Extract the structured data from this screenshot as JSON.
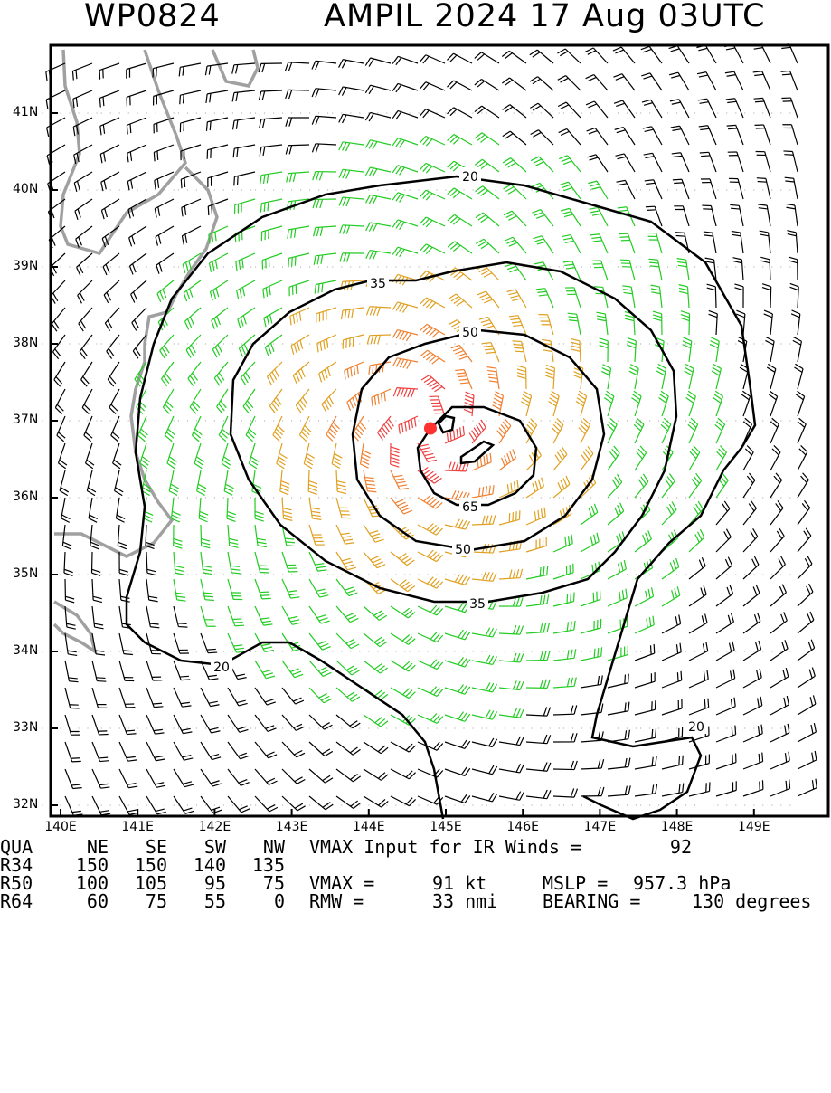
{
  "header": {
    "storm_id": "WP0824",
    "title": "AMPIL 2024 17 Aug 03UTC"
  },
  "axes": {
    "lat_labels": [
      "41N",
      "40N",
      "39N",
      "38N",
      "37N",
      "36N",
      "35N",
      "34N",
      "33N",
      "32N"
    ],
    "lon_labels": [
      "140E",
      "141E",
      "142E",
      "143E",
      "144E",
      "145E",
      "146E",
      "147E",
      "148E",
      "149E"
    ]
  },
  "contours": {
    "labels": [
      "20",
      "35",
      "50",
      "65",
      "50",
      "35",
      "20",
      "20"
    ]
  },
  "storm_center": {
    "lat": 36.9,
    "lon": 144.8,
    "color": "#ff3030"
  },
  "colors": {
    "calm": "#000000",
    "gale": "#22cc22",
    "storm": "#e0a020",
    "strong": "#f08030",
    "hurricane": "#f04040"
  },
  "table": {
    "header": [
      "QUA",
      "NE",
      "SE",
      "SW",
      "NW"
    ],
    "rows": [
      [
        "R34",
        "150",
        "150",
        "140",
        "135"
      ],
      [
        "R50",
        "100",
        "105",
        "95",
        "75"
      ],
      [
        "R64",
        "60",
        "75",
        "55",
        "0"
      ]
    ]
  },
  "info": {
    "vmax_input_label": "VMAX Input for IR Winds =",
    "vmax_input_value": "92",
    "vmax_label": "VMAX =",
    "vmax_value": "91 kt",
    "mslp_label": "MSLP =",
    "mslp_value": "957.3 hPa",
    "rmw_label": "RMW =",
    "rmw_value": "33 nmi",
    "bearing_label": "BEARING =",
    "bearing_value": "130 degrees"
  }
}
